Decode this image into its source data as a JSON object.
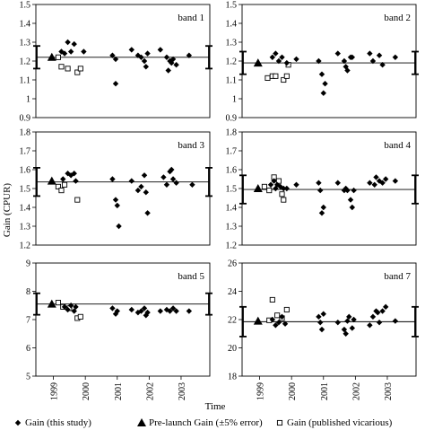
{
  "ylabel": "Gain (CPUR)",
  "xlabel": "Time",
  "x_ticks": [
    "1999",
    "2000",
    "2001",
    "2002",
    "2003"
  ],
  "legend": [
    {
      "marker": "diamond",
      "label": "Gain (this study)"
    },
    {
      "marker": "triangle",
      "label": "Pre-launch Gain (±5% error)"
    },
    {
      "marker": "square",
      "label": "Gain (published vicarious)"
    }
  ],
  "chart_data": [
    {
      "type": "scatter",
      "title": "band 1",
      "ylim": [
        0.9,
        1.5
      ],
      "y_ticks": [
        "0.9",
        "1",
        "1.1",
        "1.2",
        "1.3",
        "1.4",
        "1.5"
      ],
      "prelaunch": {
        "x": 1999.0,
        "y": 1.22
      },
      "line": 1.22,
      "error_low": 1.16,
      "error_high": 1.28,
      "this_study": [
        [
          1999.3,
          1.25
        ],
        [
          1999.4,
          1.24
        ],
        [
          1999.5,
          1.3
        ],
        [
          1999.6,
          1.25
        ],
        [
          1999.7,
          1.29
        ],
        [
          2000.0,
          1.25
        ],
        [
          2000.9,
          1.23
        ],
        [
          2001.0,
          1.21
        ],
        [
          2001.0,
          1.08
        ],
        [
          2001.5,
          1.26
        ],
        [
          2001.7,
          1.23
        ],
        [
          2001.8,
          1.22
        ],
        [
          2001.9,
          1.2
        ],
        [
          2001.95,
          1.17
        ],
        [
          2002.0,
          1.24
        ],
        [
          2002.4,
          1.26
        ],
        [
          2002.6,
          1.22
        ],
        [
          2002.65,
          1.15
        ],
        [
          2002.7,
          1.2
        ],
        [
          2002.75,
          1.19
        ],
        [
          2002.8,
          1.21
        ],
        [
          2002.9,
          1.18
        ],
        [
          2003.3,
          1.23
        ]
      ],
      "vicarious": [
        [
          1999.2,
          1.22
        ],
        [
          1999.3,
          1.17
        ],
        [
          1999.5,
          1.16
        ],
        [
          1999.8,
          1.14
        ],
        [
          1999.9,
          1.16
        ]
      ]
    },
    {
      "type": "scatter",
      "title": "band 2",
      "ylim": [
        0.9,
        1.5
      ],
      "y_ticks": [
        "0.9",
        "1",
        "1.1",
        "1.2",
        "1.3",
        "1.4",
        "1.5"
      ],
      "prelaunch": {
        "x": 1999.0,
        "y": 1.19
      },
      "line": 1.19,
      "error_low": 1.13,
      "error_high": 1.25,
      "this_study": [
        [
          1999.45,
          1.22
        ],
        [
          1999.55,
          1.24
        ],
        [
          1999.65,
          1.2
        ],
        [
          1999.75,
          1.22
        ],
        [
          1999.9,
          1.19
        ],
        [
          2000.2,
          1.21
        ],
        [
          2000.9,
          1.2
        ],
        [
          2001.0,
          1.13
        ],
        [
          2001.05,
          1.03
        ],
        [
          2001.1,
          1.08
        ],
        [
          2001.5,
          1.24
        ],
        [
          2001.7,
          1.2
        ],
        [
          2001.75,
          1.17
        ],
        [
          2001.8,
          1.15
        ],
        [
          2001.9,
          1.22
        ],
        [
          2001.95,
          1.22
        ],
        [
          2002.5,
          1.24
        ],
        [
          2002.6,
          1.2
        ],
        [
          2002.8,
          1.23
        ],
        [
          2002.9,
          1.18
        ],
        [
          2003.3,
          1.22
        ]
      ],
      "vicarious": [
        [
          1999.3,
          1.11
        ],
        [
          1999.45,
          1.12
        ],
        [
          1999.55,
          1.12
        ],
        [
          1999.8,
          1.1
        ],
        [
          1999.9,
          1.12
        ],
        [
          1999.95,
          1.18
        ]
      ]
    },
    {
      "type": "scatter",
      "title": "band 3",
      "ylim": [
        1.2,
        1.8
      ],
      "y_ticks": [
        "1.2",
        "1.3",
        "1.4",
        "1.5",
        "1.6",
        "1.7",
        "1.8"
      ],
      "prelaunch": {
        "x": 1999.0,
        "y": 1.54
      },
      "line": 1.535,
      "error_low": 1.46,
      "error_high": 1.61,
      "this_study": [
        [
          1999.35,
          1.55
        ],
        [
          1999.5,
          1.58
        ],
        [
          1999.6,
          1.57
        ],
        [
          1999.7,
          1.58
        ],
        [
          1999.75,
          1.54
        ],
        [
          2000.9,
          1.55
        ],
        [
          2001.0,
          1.44
        ],
        [
          2001.05,
          1.41
        ],
        [
          2001.1,
          1.3
        ],
        [
          2001.5,
          1.54
        ],
        [
          2001.7,
          1.49
        ],
        [
          2001.8,
          1.51
        ],
        [
          2001.9,
          1.57
        ],
        [
          2001.95,
          1.48
        ],
        [
          2002.0,
          1.37
        ],
        [
          2002.5,
          1.56
        ],
        [
          2002.6,
          1.52
        ],
        [
          2002.7,
          1.59
        ],
        [
          2002.75,
          1.6
        ],
        [
          2002.8,
          1.55
        ],
        [
          2002.9,
          1.53
        ],
        [
          2003.4,
          1.52
        ]
      ],
      "vicarious": [
        [
          1999.2,
          1.51
        ],
        [
          1999.3,
          1.49
        ],
        [
          1999.4,
          1.52
        ],
        [
          1999.8,
          1.44
        ]
      ]
    },
    {
      "type": "scatter",
      "title": "band 4",
      "ylim": [
        1.2,
        1.8
      ],
      "y_ticks": [
        "1.2",
        "1.3",
        "1.4",
        "1.5",
        "1.6",
        "1.7",
        "1.8"
      ],
      "prelaunch": {
        "x": 1999.0,
        "y": 1.5
      },
      "line": 1.495,
      "error_low": 1.42,
      "error_high": 1.57,
      "this_study": [
        [
          1999.4,
          1.52
        ],
        [
          1999.5,
          1.54
        ],
        [
          1999.55,
          1.5
        ],
        [
          1999.6,
          1.52
        ],
        [
          1999.7,
          1.51
        ],
        [
          1999.8,
          1.5
        ],
        [
          1999.9,
          1.5
        ],
        [
          2000.2,
          1.52
        ],
        [
          2000.9,
          1.53
        ],
        [
          2000.95,
          1.49
        ],
        [
          2001.0,
          1.37
        ],
        [
          2001.05,
          1.4
        ],
        [
          2001.5,
          1.53
        ],
        [
          2001.7,
          1.49
        ],
        [
          2001.75,
          1.5
        ],
        [
          2001.8,
          1.49
        ],
        [
          2001.9,
          1.44
        ],
        [
          2001.95,
          1.4
        ],
        [
          2002.0,
          1.49
        ],
        [
          2002.5,
          1.53
        ],
        [
          2002.65,
          1.52
        ],
        [
          2002.7,
          1.56
        ],
        [
          2002.8,
          1.54
        ],
        [
          2002.9,
          1.53
        ],
        [
          2003.0,
          1.55
        ],
        [
          2003.3,
          1.54
        ]
      ],
      "vicarious": [
        [
          1999.2,
          1.51
        ],
        [
          1999.35,
          1.49
        ],
        [
          1999.5,
          1.56
        ],
        [
          1999.65,
          1.54
        ],
        [
          1999.75,
          1.47
        ],
        [
          1999.8,
          1.44
        ]
      ]
    },
    {
      "type": "scatter",
      "title": "band 5",
      "ylim": [
        5,
        9
      ],
      "y_ticks": [
        "5",
        "6",
        "7",
        "8",
        "9"
      ],
      "prelaunch": {
        "x": 1999.0,
        "y": 7.55
      },
      "line": 7.55,
      "error_low": 7.17,
      "error_high": 7.93,
      "this_study": [
        [
          1999.4,
          7.45
        ],
        [
          1999.5,
          7.35
        ],
        [
          1999.6,
          7.5
        ],
        [
          1999.7,
          7.3
        ],
        [
          1999.75,
          7.45
        ],
        [
          2000.9,
          7.4
        ],
        [
          2001.0,
          7.2
        ],
        [
          2001.05,
          7.3
        ],
        [
          2001.5,
          7.35
        ],
        [
          2001.7,
          7.25
        ],
        [
          2001.8,
          7.3
        ],
        [
          2001.9,
          7.4
        ],
        [
          2001.95,
          7.15
        ],
        [
          2002.0,
          7.25
        ],
        [
          2002.4,
          7.3
        ],
        [
          2002.6,
          7.35
        ],
        [
          2002.7,
          7.3
        ],
        [
          2002.8,
          7.4
        ],
        [
          2002.9,
          7.3
        ],
        [
          2003.3,
          7.3
        ]
      ],
      "vicarious": [
        [
          1999.2,
          7.6
        ],
        [
          1999.35,
          7.45
        ],
        [
          1999.55,
          7.4
        ],
        [
          1999.8,
          7.05
        ],
        [
          1999.9,
          7.1
        ]
      ]
    },
    {
      "type": "scatter",
      "title": "band 7",
      "ylim": [
        18,
        26
      ],
      "y_ticks": [
        "18",
        "20",
        "22",
        "24",
        "26"
      ],
      "prelaunch": {
        "x": 1999.0,
        "y": 21.9
      },
      "line": 21.85,
      "error_low": 20.8,
      "error_high": 22.9,
      "this_study": [
        [
          1999.45,
          22.0
        ],
        [
          1999.55,
          21.6
        ],
        [
          1999.65,
          21.8
        ],
        [
          1999.75,
          22.2
        ],
        [
          1999.85,
          21.7
        ],
        [
          2000.9,
          22.2
        ],
        [
          2000.95,
          21.8
        ],
        [
          2001.0,
          21.3
        ],
        [
          2001.05,
          22.4
        ],
        [
          2001.5,
          21.8
        ],
        [
          2001.7,
          21.3
        ],
        [
          2001.75,
          21.0
        ],
        [
          2001.8,
          21.9
        ],
        [
          2001.85,
          22.2
        ],
        [
          2001.95,
          21.4
        ],
        [
          2002.0,
          22.0
        ],
        [
          2002.5,
          21.6
        ],
        [
          2002.6,
          22.2
        ],
        [
          2002.7,
          22.6
        ],
        [
          2002.75,
          22.5
        ],
        [
          2002.8,
          21.8
        ],
        [
          2002.9,
          22.6
        ],
        [
          2003.0,
          22.9
        ],
        [
          2003.3,
          21.9
        ]
      ],
      "vicarious": [
        [
          1999.35,
          21.95
        ],
        [
          1999.45,
          23.4
        ],
        [
          1999.6,
          22.3
        ],
        [
          1999.75,
          22.1
        ],
        [
          1999.9,
          22.7
        ]
      ]
    }
  ]
}
